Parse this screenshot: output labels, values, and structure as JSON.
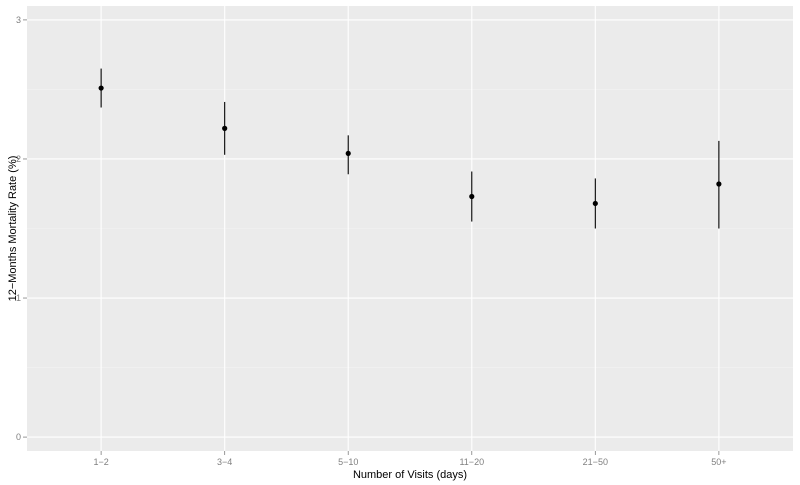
{
  "chart_data": {
    "type": "scatter",
    "xlabel": "Number of Visits (days)",
    "ylabel": "12−Months Mortality Rate (%)",
    "categories": [
      "1−2",
      "3−4",
      "5−10",
      "11−20",
      "21−50",
      "50+"
    ],
    "values": [
      2.51,
      2.22,
      2.04,
      1.73,
      1.68,
      1.82
    ],
    "error_low": [
      2.37,
      2.03,
      1.89,
      1.55,
      1.5,
      1.5
    ],
    "error_high": [
      2.65,
      2.41,
      2.17,
      1.91,
      1.86,
      2.13
    ],
    "yticks": [
      0,
      1,
      2,
      3
    ],
    "ylim": [
      -0.1,
      3.1
    ],
    "grid": true,
    "colors": {
      "panel": "#ebebeb",
      "grid_major": "#ffffff",
      "grid_minor": "#f3f3f3",
      "point": "#000000",
      "tick_text": "#7f7f7f"
    }
  }
}
